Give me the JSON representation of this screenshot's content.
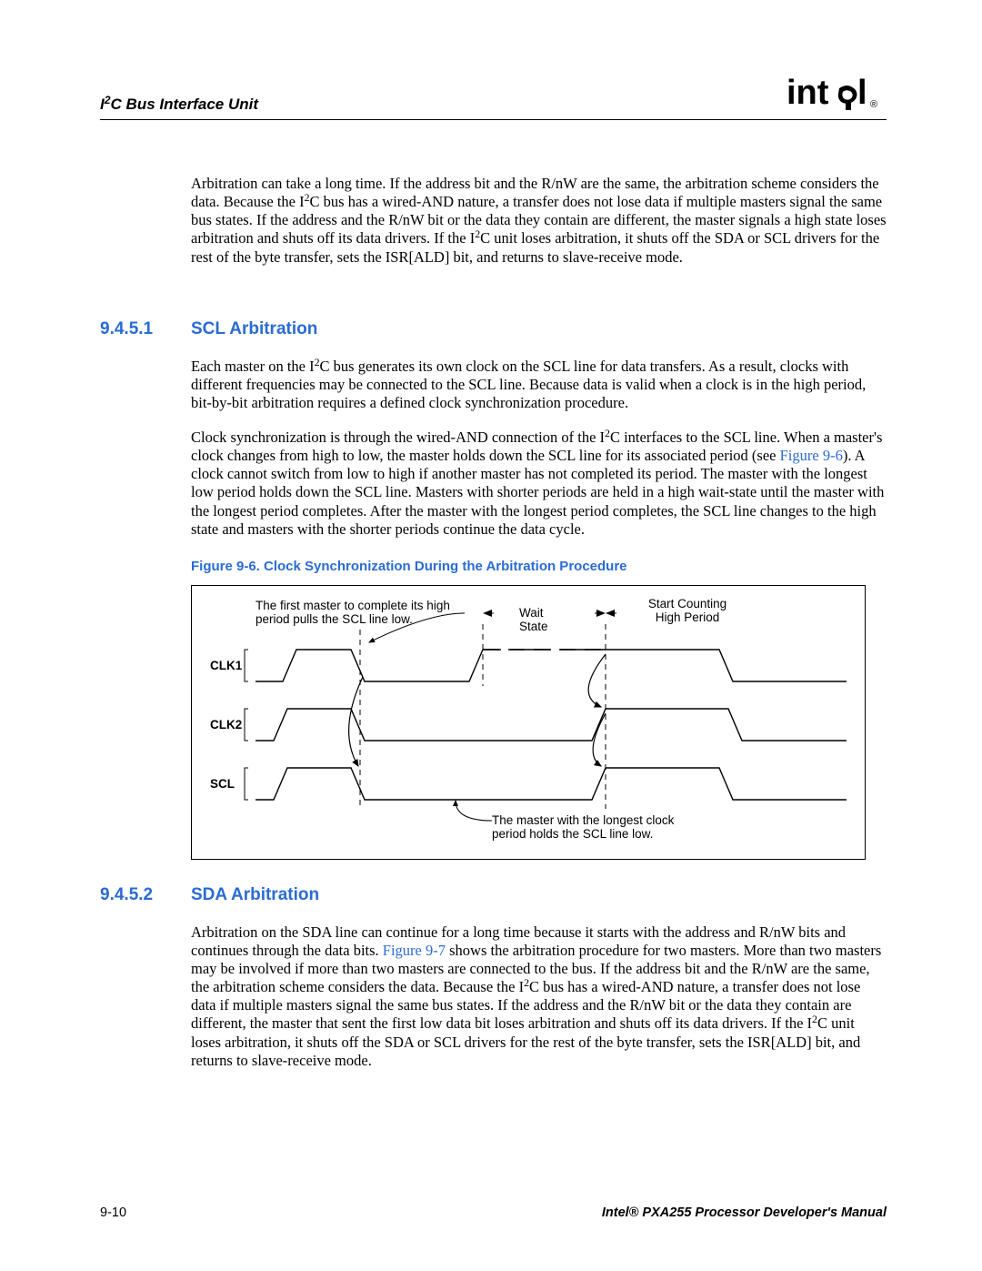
{
  "header": {
    "title_html": "I<sup>2</sup>C Bus Interface Unit"
  },
  "intro": {
    "para_html": "Arbitration can take a long time. If the address bit and the R/nW are the same, the arbitration scheme considers the data. Because the I<sup>2</sup>C bus has a wired-AND nature, a transfer does not lose data if multiple masters signal the same bus states. If the address and the R/nW bit or the data they contain are different, the master signals a high state loses arbitration and shuts off its data drivers. If the I<sup>2</sup>C unit loses arbitration, it shuts off the SDA or SCL drivers for the rest of the byte transfer, sets the ISR[ALD] bit, and returns to slave-receive mode."
  },
  "sec1": {
    "num": "9.4.5.1",
    "title": "SCL Arbitration",
    "p1_html": "Each master on the I<sup>2</sup>C bus generates its own clock on the SCL line for data transfers. As a result, clocks with different frequencies may be connected to the SCL line. Because data is valid when a clock is in the high period, bit-by-bit arbitration requires a defined clock synchronization procedure.",
    "p2_html": "Clock synchronization is through the wired-AND connection of the I<sup>2</sup>C interfaces to the SCL line. When a master's clock changes from high to low, the master holds down the SCL line for its associated period (see <span class=\"link-blue\">Figure 9-6</span>). A clock cannot switch from low to high if another master has not completed its period. The master with the longest low period holds down the SCL line. Masters with shorter periods are held in a high wait-state until the master with the longest period completes. After the master with the longest period completes, the SCL line changes to the high state and masters with the shorter periods continue the data cycle."
  },
  "figure": {
    "caption": "Figure 9-6. Clock Synchronization During the Arbitration Procedure",
    "annot1_l1": "The first master to complete its high",
    "annot1_l2": "period pulls the SCL line low.",
    "annot_wait_l1": "Wait",
    "annot_wait_l2": "State",
    "annot_start_l1": "Start Counting",
    "annot_start_l2": "High Period",
    "sig1": "CLK1",
    "sig2": "CLK2",
    "sig3": "SCL",
    "annot_bottom_l1": "The master with the longest clock",
    "annot_bottom_l2": "period holds the SCL line low.",
    "colors": {
      "solid": "#000000",
      "dashed": "#000000"
    }
  },
  "sec2": {
    "num": "9.4.5.2",
    "title": "SDA Arbitration",
    "p1_html": "Arbitration on the SDA line can continue for a long time because it starts with the address and R/nW bits and continues through the data bits. <span class=\"link-blue\">Figure 9-7</span> shows the arbitration procedure for two masters. More than two masters may be involved if more than two masters are connected to the bus. If the address bit and the R/nW are the same, the arbitration scheme considers the data. Because the I<sup>2</sup>C bus has a wired-AND nature, a transfer does not lose data if multiple masters signal the same bus states. If the address and the R/nW bit or the data they contain are different, the master that sent the first low data bit loses arbitration and shuts off its data drivers. If the I<sup>2</sup>C unit loses arbitration, it shuts off the SDA or SCL drivers for the rest of the byte transfer, sets the ISR[ALD] bit, and returns to slave-receive mode."
  },
  "footer": {
    "left": "9-10",
    "right": "Intel® PXA255 Processor Developer's Manual"
  }
}
